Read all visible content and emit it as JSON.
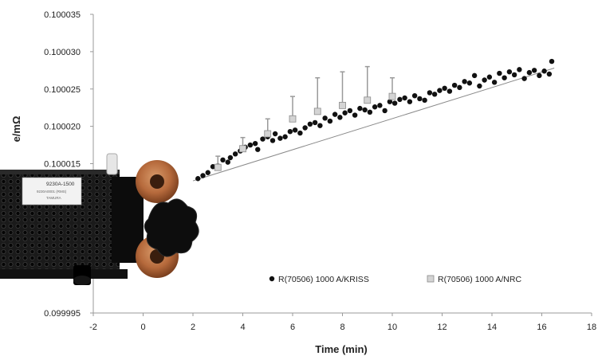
{
  "chart_data": {
    "type": "scatter",
    "xlabel": "Time (min)",
    "ylabel_visible": "e/mΩ",
    "xlim": [
      -2,
      18
    ],
    "ylim": [
      0.099995,
      0.100035
    ],
    "x_ticks": [
      "-2",
      "0",
      "2",
      "4",
      "6",
      "8",
      "10",
      "12",
      "14",
      "16",
      "18"
    ],
    "y_ticks": [
      "0.099995",
      "0.100000",
      "0.100005",
      "0.100010",
      "0.100015",
      "0.100020",
      "0.100025",
      "0.100030",
      "0.100035"
    ],
    "legend_position": "bottom-center",
    "grid": false,
    "series": [
      {
        "name": "R(70506) 1000 A/KRISS",
        "marker": "circle",
        "color": "#111111",
        "points": [
          [
            2.2,
            0.100013
          ],
          [
            2.4,
            0.1000134
          ],
          [
            2.6,
            0.1000138
          ],
          [
            2.8,
            0.1000146
          ],
          [
            3.0,
            0.1000147
          ],
          [
            3.2,
            0.1000155
          ],
          [
            3.4,
            0.1000152
          ],
          [
            3.5,
            0.1000158
          ],
          [
            3.7,
            0.1000163
          ],
          [
            3.9,
            0.1000167
          ],
          [
            4.1,
            0.1000172
          ],
          [
            4.3,
            0.1000175
          ],
          [
            4.5,
            0.1000177
          ],
          [
            4.6,
            0.1000169
          ],
          [
            4.8,
            0.1000183
          ],
          [
            5.0,
            0.1000186
          ],
          [
            5.2,
            0.1000181
          ],
          [
            5.3,
            0.100019
          ],
          [
            5.5,
            0.1000184
          ],
          [
            5.7,
            0.1000186
          ],
          [
            5.9,
            0.1000193
          ],
          [
            6.1,
            0.1000195
          ],
          [
            6.3,
            0.1000191
          ],
          [
            6.5,
            0.1000198
          ],
          [
            6.7,
            0.1000203
          ],
          [
            6.9,
            0.1000205
          ],
          [
            7.1,
            0.1000201
          ],
          [
            7.3,
            0.1000211
          ],
          [
            7.5,
            0.1000207
          ],
          [
            7.7,
            0.1000216
          ],
          [
            7.9,
            0.1000212
          ],
          [
            8.1,
            0.1000218
          ],
          [
            8.3,
            0.1000221
          ],
          [
            8.5,
            0.1000215
          ],
          [
            8.7,
            0.1000224
          ],
          [
            8.9,
            0.1000222
          ],
          [
            9.1,
            0.1000219
          ],
          [
            9.3,
            0.1000226
          ],
          [
            9.5,
            0.1000228
          ],
          [
            9.7,
            0.1000221
          ],
          [
            9.9,
            0.1000233
          ],
          [
            10.1,
            0.1000231
          ],
          [
            10.3,
            0.1000236
          ],
          [
            10.5,
            0.1000238
          ],
          [
            10.7,
            0.1000233
          ],
          [
            10.9,
            0.1000241
          ],
          [
            11.1,
            0.1000237
          ],
          [
            11.3,
            0.1000235
          ],
          [
            11.5,
            0.1000245
          ],
          [
            11.7,
            0.1000243
          ],
          [
            11.9,
            0.1000248
          ],
          [
            12.1,
            0.1000251
          ],
          [
            12.3,
            0.1000247
          ],
          [
            12.5,
            0.1000255
          ],
          [
            12.7,
            0.1000252
          ],
          [
            12.9,
            0.100026
          ],
          [
            13.1,
            0.1000258
          ],
          [
            13.3,
            0.1000268
          ],
          [
            13.5,
            0.1000254
          ],
          [
            13.7,
            0.1000262
          ],
          [
            13.9,
            0.1000266
          ],
          [
            14.1,
            0.1000259
          ],
          [
            14.3,
            0.1000271
          ],
          [
            14.5,
            0.1000265
          ],
          [
            14.7,
            0.1000273
          ],
          [
            14.9,
            0.1000269
          ],
          [
            15.1,
            0.1000276
          ],
          [
            15.3,
            0.1000264
          ],
          [
            15.5,
            0.1000272
          ],
          [
            15.7,
            0.1000275
          ],
          [
            15.9,
            0.1000268
          ],
          [
            16.1,
            0.1000274
          ],
          [
            16.3,
            0.100027
          ],
          [
            16.4,
            0.1000287
          ]
        ]
      },
      {
        "name": "R(70506) 1000 A/NRC",
        "marker": "square",
        "color": "#bbbbbb",
        "points": [
          [
            3.0,
            0.1000145
          ],
          [
            4.0,
            0.100017
          ],
          [
            5.0,
            0.100019
          ],
          [
            6.0,
            0.100021
          ],
          [
            7.0,
            0.100022
          ],
          [
            8.0,
            0.1000228
          ],
          [
            9.0,
            0.1000235
          ],
          [
            10.0,
            0.100024
          ]
        ],
        "error_plus": [
          1.5e-06,
          1.5e-06,
          2e-06,
          3e-06,
          4.5e-06,
          4.5e-06,
          4.5e-06,
          2.5e-06
        ]
      }
    ],
    "trendline": {
      "x": [
        2.0,
        16.5
      ],
      "y": [
        0.1000127,
        0.1000278
      ]
    }
  },
  "device": {
    "label_line1": "9230A-1500",
    "label_line2": "9230A0001 (RMS)",
    "label_line3": "TAMURA"
  }
}
